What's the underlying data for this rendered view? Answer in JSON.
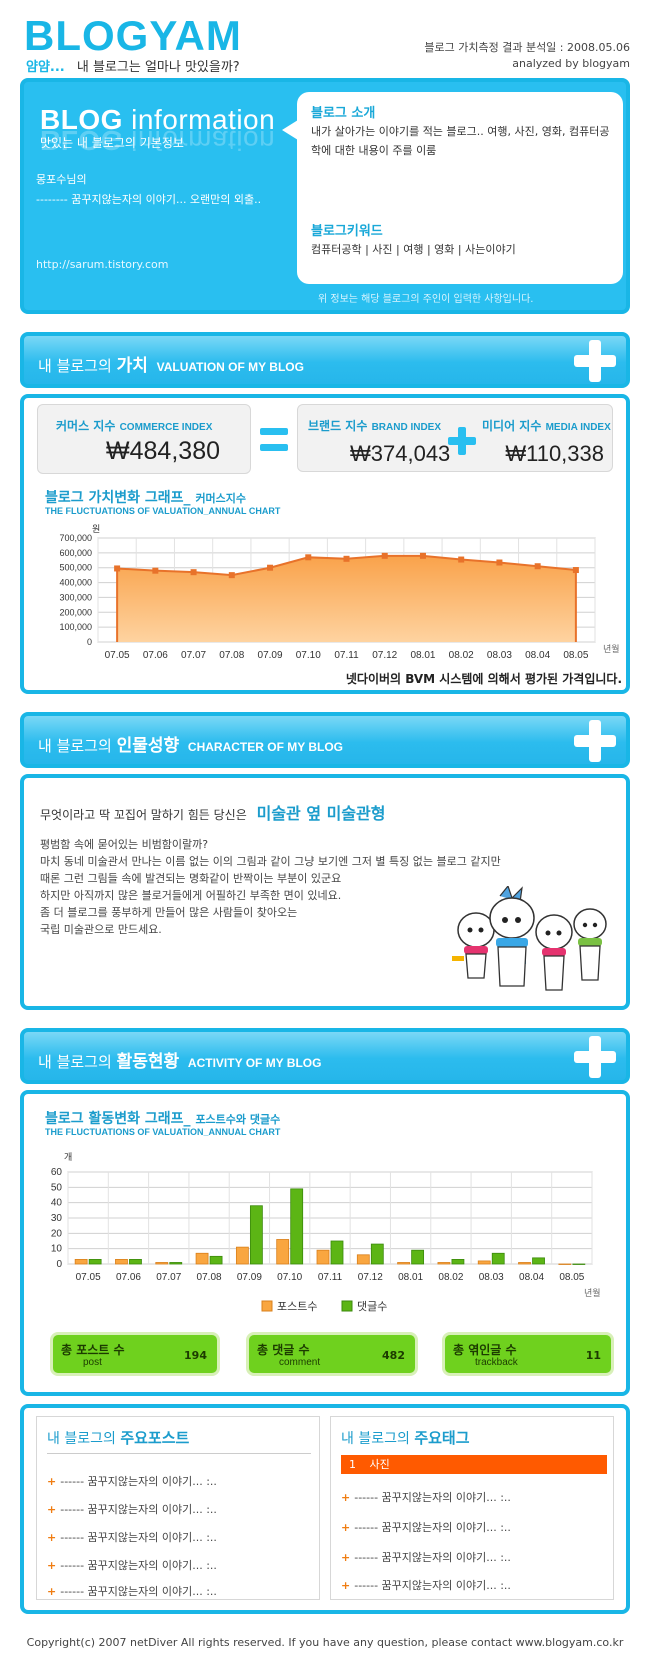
{
  "header": {
    "logo": "BLOGYAM",
    "tagline_prefix": "얌얌...",
    "tagline": "내 블로그는 얼마나 맛있을까?",
    "analysis_date": "블로그 가치측정 결과 분석일 : 2008.05.06",
    "analyzed_by": "analyzed by blogyam"
  },
  "info": {
    "title_big": "BLOG",
    "title_rest": "information",
    "subtitle": "맛있는 내 블로그의 기본정보",
    "owner_line1": "몽포수님의",
    "owner_line2": "-------- 꿈꾸지않는자의 이야기... 오랜만의 외출..",
    "url": "http://sarum.tistory.com",
    "intro_heading": "블로그 소개",
    "intro_text": "내가 살아가는 이야기를 적는 블로그.. 여행, 사진, 영화, 컴퓨터공학에 대한 내용이 주를 이룸",
    "keyword_heading": "블로그키워드",
    "keywords": "컴퓨터공학 | 사진 | 여행 | 영화 | 사는이야기",
    "note": "위 정보는 해당 블로그의 주인이 입력한 사항입니다."
  },
  "valuation": {
    "section_prefix": "내 블로그의",
    "section_bold": "가치",
    "section_en": "VALUATION OF MY BLOG",
    "commerce_label": "커머스 지수",
    "commerce_en": "COMMERCE INDEX",
    "commerce_value": "₩484,380",
    "brand_label": "브랜드 지수",
    "brand_en": "BRAND INDEX",
    "brand_value": "₩374,043",
    "media_label": "미디어 지수",
    "media_en": "MEDIA INDEX",
    "media_value": "₩110,338",
    "chart_title": "블로그 가치변화 그래프_",
    "chart_title_small": "커머스지수",
    "chart_subtitle": "THE FLUCTUATIONS OF VALUATION_ANNUAL CHART",
    "chart_note": "넷다이버의 BVM 시스템에 의해서 평가된 가격입니다."
  },
  "character": {
    "section_prefix": "내 블로그의",
    "section_bold": "인물성향",
    "section_en": "CHARACTER OF MY BLOG",
    "head": "무엇이라고 딱 꼬집어 말하기 힘든 당신은",
    "type": "미술관 옆 미술관형",
    "desc_lines": [
      "평범함 속에 묻어있는 비범함이랄까?",
      "마치 동네 미술관서 만나는 이름 없는 이의 그림과 같이 그냥 보기엔 그저 별 특징 없는 블로그 같지만",
      "때론 그런 그림들 속에 발견되는 명화같이 반짝이는 부분이 있군요",
      "하지만 아직까지 많은 블로거들에게 어필하긴 부족한 면이 있네요.",
      "좀 더 블로그를 풍부하게 만들어 많은 사람들이 찾아오는",
      "국립 미술관으로 만드세요."
    ]
  },
  "activity": {
    "section_prefix": "내 블로그의",
    "section_bold": "활동현황",
    "section_en": "ACTIVITY OF MY BLOG",
    "chart_title": "블로그 활동변화 그래프_",
    "chart_title_small": "포스트수와 댓글수",
    "chart_subtitle": "THE FLUCTUATIONS OF VALUATION_ANNUAL CHART",
    "stats": [
      {
        "label": "총 포스트 수",
        "en": "post",
        "value": "194"
      },
      {
        "label": "총 댓글 수",
        "en": "comment",
        "value": "482"
      },
      {
        "label": "총 엮인글 수",
        "en": "trackback",
        "value": "11"
      }
    ]
  },
  "lists": {
    "posts_prefix": "내 블로그의",
    "posts_bold": "주요포스트",
    "posts": [
      "------ 꿈꾸지않는자의 이야기... :..",
      "------ 꿈꾸지않는자의 이야기... :..",
      "------ 꿈꾸지않는자의 이야기... :..",
      "------ 꿈꾸지않는자의 이야기... :..",
      "------ 꿈꾸지않는자의 이야기... :.."
    ],
    "tags_prefix": "내 블로그의",
    "tags_bold": "주요태그",
    "top_tag_rank": "1",
    "top_tag": "사진",
    "tag_posts": [
      "------ 꿈꾸지않는자의 이야기... :..",
      "------ 꿈꾸지않는자의 이야기... :..",
      "------ 꿈꾸지않는자의 이야기... :..",
      "------ 꿈꾸지않는자의 이야기... :.."
    ]
  },
  "footer": "Copyright(c) 2007 netDiver All rights reserved. If you have any question, please contact www.blogyam.co.kr",
  "chart_data": [
    {
      "type": "area",
      "title": "블로그 가치변화 그래프_ 커머스지수",
      "ylabel": "원",
      "xlabel": "년월",
      "categories": [
        "07.05",
        "07.06",
        "07.07",
        "07.08",
        "07.09",
        "07.10",
        "07.11",
        "07.12",
        "08.01",
        "08.02",
        "08.03",
        "08.04",
        "08.05"
      ],
      "values": [
        495000,
        480000,
        470000,
        450000,
        500000,
        570000,
        560000,
        580000,
        580000,
        555000,
        535000,
        510000,
        484380
      ],
      "yticks": [
        0,
        100000,
        200000,
        300000,
        400000,
        500000,
        600000,
        700000
      ],
      "ytick_labels": [
        "0",
        "100,000",
        "200,000",
        "300,000",
        "400,000",
        "500,000",
        "600,000",
        "700,000"
      ],
      "ylim": [
        0,
        700000
      ],
      "grid": true
    },
    {
      "type": "bar",
      "title": "블로그 활동변화 그래프_ 포스트수와 댓글수",
      "ylabel": "개",
      "xlabel": "년월",
      "categories": [
        "07.05",
        "07.06",
        "07.07",
        "07.08",
        "07.09",
        "07.10",
        "07.11",
        "07.12",
        "08.01",
        "08.02",
        "08.03",
        "08.04",
        "08.05"
      ],
      "series": [
        {
          "name": "포스트수",
          "color": "#f9a640",
          "values": [
            3,
            3,
            1,
            7,
            11,
            16,
            9,
            6,
            1,
            1,
            2,
            1,
            0
          ]
        },
        {
          "name": "댓글수",
          "color": "#5cb515",
          "values": [
            3,
            3,
            1,
            5,
            38,
            49,
            15,
            13,
            9,
            3,
            7,
            4,
            0
          ]
        }
      ],
      "yticks": [
        0,
        10,
        20,
        30,
        40,
        50,
        60
      ],
      "ylim": [
        0,
        60
      ],
      "legend": "bottom",
      "grid": true
    }
  ]
}
